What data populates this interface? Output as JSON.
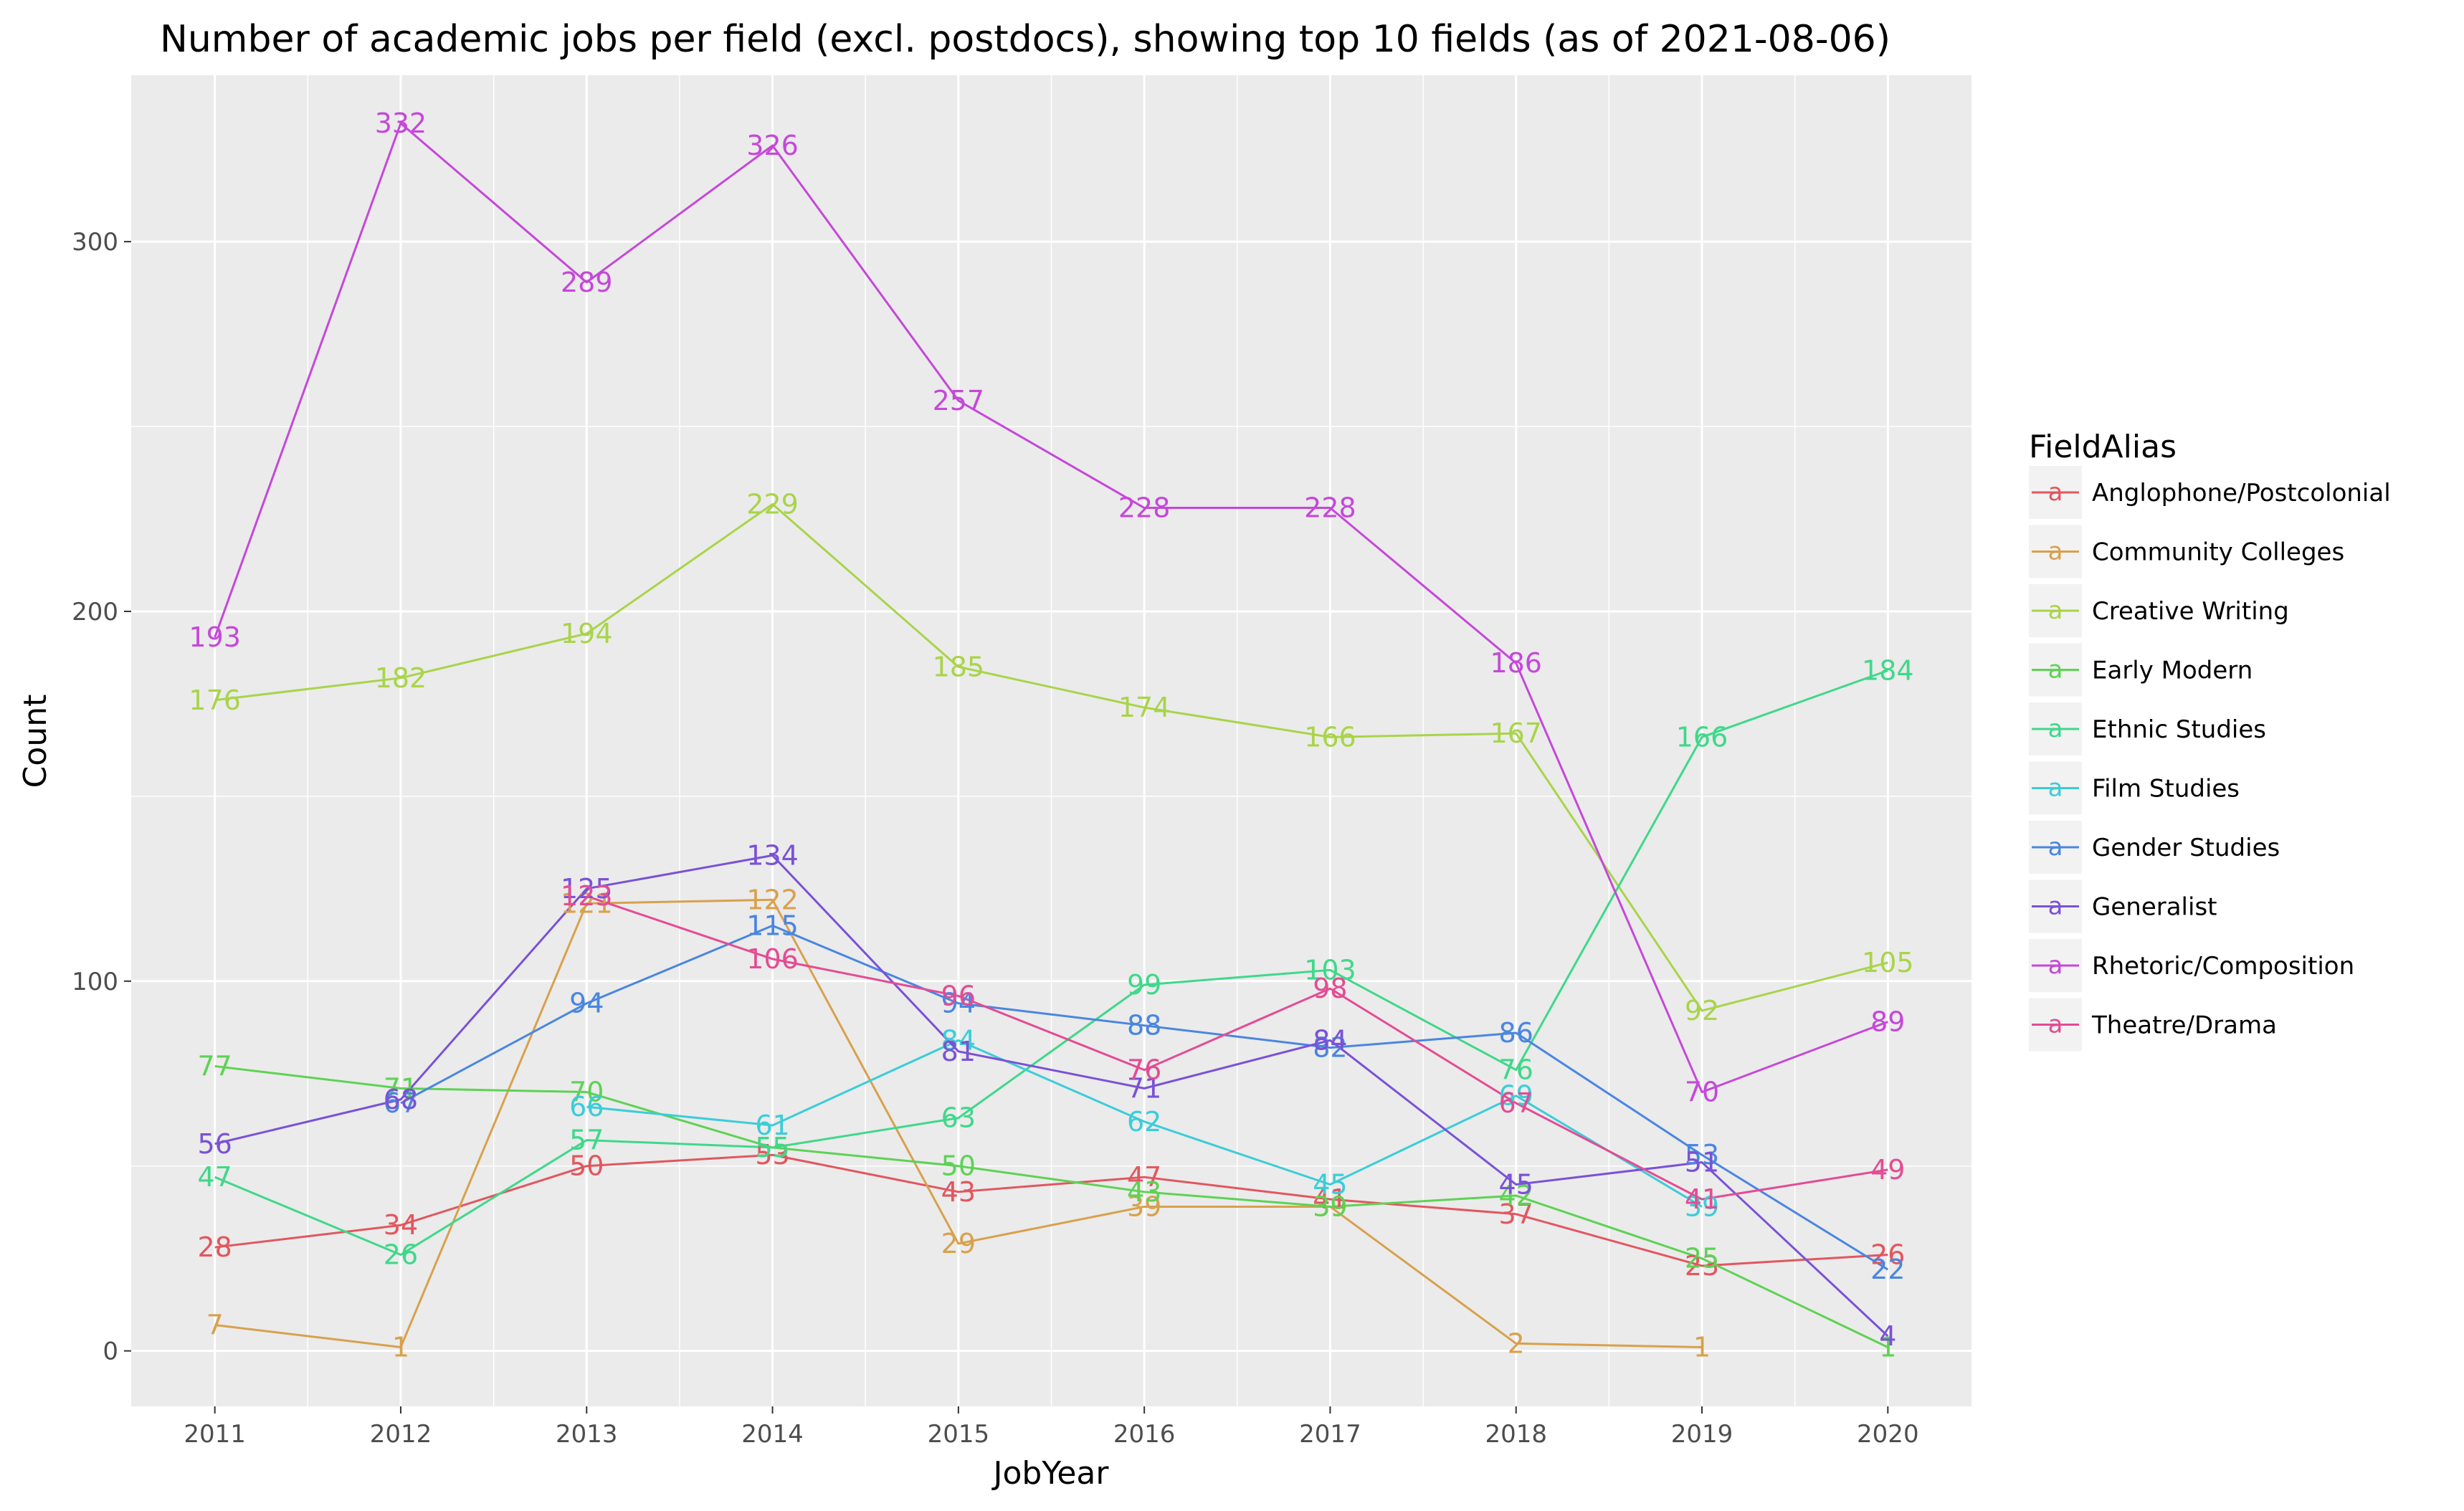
{
  "chart_data": {
    "type": "line",
    "title": "Number of academic jobs per field (excl. postdocs), showing top 10 fields (as of 2021-08-06)",
    "xlabel": "JobYear",
    "ylabel": "Count",
    "x": [
      2011,
      2012,
      2013,
      2014,
      2015,
      2016,
      2017,
      2018,
      2019,
      2020
    ],
    "ylim": [
      -15,
      345
    ],
    "yticks": [
      0,
      100,
      200,
      300
    ],
    "grid": true,
    "legend": {
      "title": "FieldAlias",
      "position": "right",
      "key_glyph": "a"
    },
    "series": [
      {
        "name": "Anglophone/Postcolonial",
        "color": "#E1575F",
        "values": [
          28,
          34,
          50,
          53,
          43,
          47,
          41,
          37,
          23,
          26
        ]
      },
      {
        "name": "Community Colleges",
        "color": "#D8A14D",
        "values": [
          7,
          1,
          121,
          122,
          29,
          39,
          39,
          2,
          1,
          null
        ]
      },
      {
        "name": "Creative Writing",
        "color": "#A9D44A",
        "values": [
          176,
          182,
          194,
          229,
          185,
          174,
          166,
          167,
          92,
          105
        ]
      },
      {
        "name": "Early Modern",
        "color": "#5ED254",
        "values": [
          77,
          71,
          70,
          55,
          50,
          43,
          39,
          42,
          25,
          1
        ]
      },
      {
        "name": "Ethnic Studies",
        "color": "#3FD88A",
        "values": [
          47,
          26,
          57,
          55,
          63,
          99,
          103,
          76,
          166,
          184
        ]
      },
      {
        "name": "Film Studies",
        "color": "#3BCDD8",
        "values": [
          null,
          null,
          66,
          61,
          84,
          62,
          45,
          69,
          39,
          null
        ]
      },
      {
        "name": "Gender Studies",
        "color": "#4A86E0",
        "values": [
          null,
          67,
          94,
          115,
          94,
          88,
          82,
          86,
          53,
          22
        ]
      },
      {
        "name": "Generalist",
        "color": "#7A52D6",
        "values": [
          56,
          68,
          125,
          134,
          81,
          71,
          84,
          45,
          51,
          4
        ]
      },
      {
        "name": "Rhetoric/Composition",
        "color": "#C548D9",
        "values": [
          193,
          332,
          289,
          326,
          257,
          228,
          228,
          186,
          70,
          89
        ]
      },
      {
        "name": "Theatre/Drama",
        "color": "#E34C94",
        "values": [
          null,
          null,
          123,
          106,
          96,
          76,
          98,
          67,
          41,
          49
        ]
      }
    ]
  }
}
